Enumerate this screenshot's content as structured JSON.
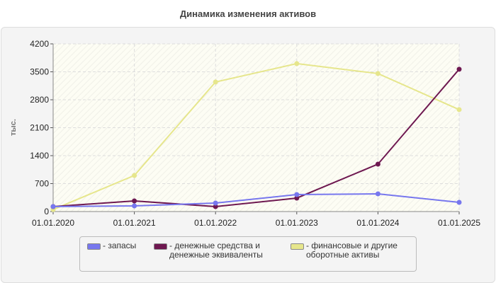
{
  "chart_data": {
    "type": "line",
    "title": "Динамика изменения активов",
    "ylabel": "тыс.",
    "xlabel": "",
    "categories": [
      "01.01.2020",
      "01.01.2021",
      "01.01.2022",
      "01.01.2023",
      "01.01.2024",
      "01.01.2025"
    ],
    "ylim": [
      0,
      4200
    ],
    "yticks": [
      0,
      700,
      1400,
      2100,
      2800,
      3500,
      4200
    ],
    "grid": true,
    "legend_position": "bottom",
    "series": [
      {
        "name": "- запасы",
        "color": "#7777ee",
        "values": [
          124,
          142,
          213,
          425,
          443,
          230
        ]
      },
      {
        "name": "- денежные средства и денежные эквиваленты",
        "line1": "- денежные средства и",
        "line2": "денежные эквиваленты",
        "color": "#6e1850",
        "values": [
          124,
          266,
          124,
          337,
          1188,
          3564
        ]
      },
      {
        "name": "- финансовые и другие оборотные активы",
        "line1": "- финансовые и другие",
        "line2": "оборотные активы",
        "color": "#e6e68c",
        "values": [
          50,
          904,
          3245,
          3705,
          3457,
          2553
        ]
      }
    ]
  }
}
